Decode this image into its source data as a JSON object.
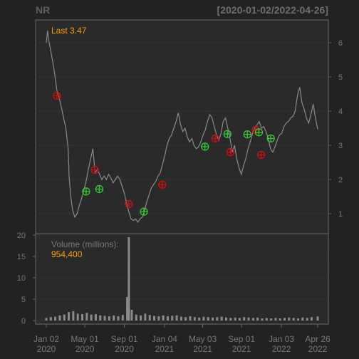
{
  "header": {
    "symbol": "NR",
    "date_range": "[2020-01-02/2022-04-26]"
  },
  "colors": {
    "background": "#222222",
    "panel": "#2a2a2a",
    "frame": "#6a6a6a",
    "grid": "#333333",
    "price_line": "#8a8a8a",
    "volume_bar": "#8a8a8a",
    "label_accent": "#ff9d00",
    "tick_text": "#777777",
    "buy_marker": "#33cc33",
    "sell_marker": "#cc1111"
  },
  "chart_data": [
    {
      "type": "line",
      "panel": "price",
      "last_label": "Last 3.47",
      "x": [
        "2020-01-02",
        "2020-01-06",
        "2020-01-09",
        "2020-01-15",
        "2020-01-21",
        "2020-01-28",
        "2020-02-04",
        "2020-02-11",
        "2020-02-18",
        "2020-02-25",
        "2020-03-03",
        "2020-03-10",
        "2020-03-13",
        "2020-03-18",
        "2020-03-24",
        "2020-03-31",
        "2020-04-07",
        "2020-04-14",
        "2020-04-21",
        "2020-04-28",
        "2020-05-05",
        "2020-05-12",
        "2020-05-19",
        "2020-05-26",
        "2020-06-02",
        "2020-06-09",
        "2020-06-16",
        "2020-06-23",
        "2020-06-30",
        "2020-07-07",
        "2020-07-14",
        "2020-07-21",
        "2020-07-28",
        "2020-08-04",
        "2020-08-11",
        "2020-08-18",
        "2020-08-25",
        "2020-09-01",
        "2020-09-08",
        "2020-09-15",
        "2020-09-22",
        "2020-09-29",
        "2020-10-06",
        "2020-10-13",
        "2020-10-20",
        "2020-10-27",
        "2020-11-03",
        "2020-11-10",
        "2020-11-17",
        "2020-11-24",
        "2020-12-01",
        "2020-12-08",
        "2020-12-15",
        "2020-12-22",
        "2020-12-29",
        "2021-01-05",
        "2021-01-12",
        "2021-01-19",
        "2021-01-26",
        "2021-02-02",
        "2021-02-09",
        "2021-02-16",
        "2021-02-23",
        "2021-03-02",
        "2021-03-09",
        "2021-03-16",
        "2021-03-23",
        "2021-03-30",
        "2021-04-06",
        "2021-04-13",
        "2021-04-20",
        "2021-04-27",
        "2021-05-04",
        "2021-05-11",
        "2021-05-18",
        "2021-05-25",
        "2021-06-01",
        "2021-06-08",
        "2021-06-15",
        "2021-06-22",
        "2021-06-29",
        "2021-07-06",
        "2021-07-13",
        "2021-07-20",
        "2021-07-27",
        "2021-08-03",
        "2021-08-10",
        "2021-08-17",
        "2021-08-24",
        "2021-08-31",
        "2021-09-07",
        "2021-09-14",
        "2021-09-21",
        "2021-09-28",
        "2021-10-05",
        "2021-10-12",
        "2021-10-19",
        "2021-10-26",
        "2021-11-02",
        "2021-11-09",
        "2021-11-16",
        "2021-11-23",
        "2021-11-30",
        "2021-12-07",
        "2021-12-14",
        "2021-12-21",
        "2021-12-28",
        "2022-01-04",
        "2022-01-11",
        "2022-01-18",
        "2022-01-25",
        "2022-02-01",
        "2022-02-08",
        "2022-02-15",
        "2022-02-22",
        "2022-03-01",
        "2022-03-08",
        "2022-03-15",
        "2022-03-22",
        "2022-03-29",
        "2022-04-05",
        "2022-04-12",
        "2022-04-19",
        "2022-04-26"
      ],
      "y": [
        6.0,
        6.35,
        6.1,
        5.8,
        5.5,
        5.1,
        4.6,
        4.4,
        4.1,
        3.8,
        3.5,
        2.9,
        2.1,
        1.5,
        1.1,
        0.9,
        1.0,
        1.25,
        1.45,
        1.7,
        1.95,
        2.3,
        2.6,
        2.9,
        2.2,
        2.3,
        2.15,
        2.0,
        2.1,
        2.0,
        2.15,
        2.05,
        1.9,
        2.0,
        2.1,
        2.0,
        1.8,
        1.6,
        1.3,
        1.05,
        0.85,
        0.8,
        0.85,
        0.75,
        0.85,
        0.9,
        1.1,
        1.35,
        1.55,
        1.75,
        1.85,
        1.95,
        2.1,
        2.2,
        2.45,
        2.7,
        3.0,
        3.2,
        3.3,
        3.5,
        3.7,
        3.95,
        3.6,
        3.4,
        3.5,
        3.25,
        3.1,
        3.2,
        3.0,
        2.9,
        2.95,
        3.1,
        3.3,
        3.45,
        3.7,
        3.9,
        3.8,
        3.55,
        3.3,
        3.15,
        3.35,
        3.7,
        3.8,
        3.5,
        3.2,
        2.8,
        3.0,
        2.6,
        2.35,
        2.15,
        2.4,
        2.6,
        2.9,
        3.1,
        3.35,
        3.5,
        3.6,
        3.7,
        3.5,
        3.55,
        3.4,
        3.2,
        2.9,
        2.8,
        2.95,
        3.15,
        3.3,
        3.35,
        3.55,
        3.65,
        3.7,
        3.8,
        3.85,
        4.0,
        4.45,
        4.7,
        4.25,
        4.05,
        3.8,
        3.65,
        3.9,
        4.2,
        3.8,
        3.47
      ],
      "markers": [
        {
          "date": "2020-02-04",
          "price": 4.45,
          "signal": "sell"
        },
        {
          "date": "2020-05-05",
          "price": 1.65,
          "signal": "buy"
        },
        {
          "date": "2020-06-01",
          "price": 2.28,
          "signal": "sell"
        },
        {
          "date": "2020-06-15",
          "price": 1.72,
          "signal": "buy"
        },
        {
          "date": "2020-09-15",
          "price": 1.28,
          "signal": "sell"
        },
        {
          "date": "2020-11-01",
          "price": 1.06,
          "signal": "buy"
        },
        {
          "date": "2020-12-28",
          "price": 1.85,
          "signal": "sell"
        },
        {
          "date": "2021-05-10",
          "price": 2.96,
          "signal": "buy"
        },
        {
          "date": "2021-06-11",
          "price": 3.2,
          "signal": "sell"
        },
        {
          "date": "2021-07-19",
          "price": 3.33,
          "signal": "buy"
        },
        {
          "date": "2021-07-28",
          "price": 2.8,
          "signal": "sell"
        },
        {
          "date": "2021-09-19",
          "price": 3.32,
          "signal": "buy"
        },
        {
          "date": "2021-10-15",
          "price": 3.45,
          "signal": "sell"
        },
        {
          "date": "2021-10-25",
          "price": 3.38,
          "signal": "buy"
        },
        {
          "date": "2021-11-01",
          "price": 2.72,
          "signal": "sell"
        },
        {
          "date": "2021-12-01",
          "price": 3.2,
          "signal": "buy"
        }
      ],
      "ylim": [
        0.4,
        6.6
      ],
      "yticks": [
        1,
        2,
        3,
        4,
        5,
        6
      ],
      "grid": true
    },
    {
      "type": "bar",
      "panel": "volume",
      "label": "Volume (millions):",
      "last_value": "954,400",
      "x": [
        "2020-01-02",
        "2020-01-16",
        "2020-01-30",
        "2020-02-13",
        "2020-02-27",
        "2020-03-12",
        "2020-03-26",
        "2020-04-09",
        "2020-04-23",
        "2020-05-07",
        "2020-05-21",
        "2020-06-04",
        "2020-06-18",
        "2020-07-02",
        "2020-07-16",
        "2020-07-30",
        "2020-08-13",
        "2020-08-27",
        "2020-09-10",
        "2020-09-15",
        "2020-09-24",
        "2020-10-08",
        "2020-10-22",
        "2020-11-05",
        "2020-11-19",
        "2020-12-03",
        "2020-12-17",
        "2020-12-31",
        "2021-01-14",
        "2021-01-28",
        "2021-02-11",
        "2021-02-25",
        "2021-03-11",
        "2021-03-25",
        "2021-04-08",
        "2021-04-22",
        "2021-05-06",
        "2021-05-20",
        "2021-06-03",
        "2021-06-17",
        "2021-07-01",
        "2021-07-15",
        "2021-07-29",
        "2021-08-12",
        "2021-08-26",
        "2021-09-09",
        "2021-09-23",
        "2021-10-07",
        "2021-10-21",
        "2021-11-04",
        "2021-11-18",
        "2021-12-02",
        "2021-12-16",
        "2021-12-30",
        "2022-01-13",
        "2022-01-27",
        "2022-02-10",
        "2022-02-24",
        "2022-03-10",
        "2022-03-24",
        "2022-04-07",
        "2022-04-26"
      ],
      "values": [
        0.6,
        0.8,
        0.9,
        1.2,
        1.4,
        2.0,
        2.2,
        1.6,
        1.5,
        1.8,
        1.4,
        1.5,
        1.2,
        1.1,
        1.0,
        1.2,
        1.0,
        1.3,
        5.5,
        19.5,
        2.5,
        1.4,
        1.2,
        1.6,
        1.3,
        1.1,
        1.0,
        1.2,
        1.0,
        1.1,
        1.2,
        0.9,
        0.8,
        1.0,
        0.8,
        0.7,
        0.9,
        0.8,
        0.7,
        0.8,
        0.9,
        0.7,
        0.6,
        0.7,
        0.6,
        0.8,
        0.7,
        0.6,
        0.7,
        0.5,
        0.6,
        0.5,
        0.6,
        0.5,
        0.6,
        0.7,
        0.6,
        0.5,
        0.7,
        0.6,
        0.8,
        0.95
      ],
      "ylim": [
        0,
        20
      ],
      "yticks": [
        0,
        5,
        10,
        15,
        20
      ],
      "xticks": [
        {
          "date": "2020-01-02",
          "label": [
            "Jan 02",
            "2020"
          ]
        },
        {
          "date": "2020-05-01",
          "label": [
            "May 01",
            "2020"
          ]
        },
        {
          "date": "2020-09-01",
          "label": [
            "Sep 01",
            "2020"
          ]
        },
        {
          "date": "2021-01-04",
          "label": [
            "Jan 04",
            "2021"
          ]
        },
        {
          "date": "2021-05-03",
          "label": [
            "May 03",
            "2021"
          ]
        },
        {
          "date": "2021-09-01",
          "label": [
            "Sep 01",
            "2021"
          ]
        },
        {
          "date": "2022-01-03",
          "label": [
            "Jan 03",
            "2022"
          ]
        },
        {
          "date": "2022-04-26",
          "label": [
            "Apr 26",
            "2022"
          ]
        }
      ]
    }
  ]
}
